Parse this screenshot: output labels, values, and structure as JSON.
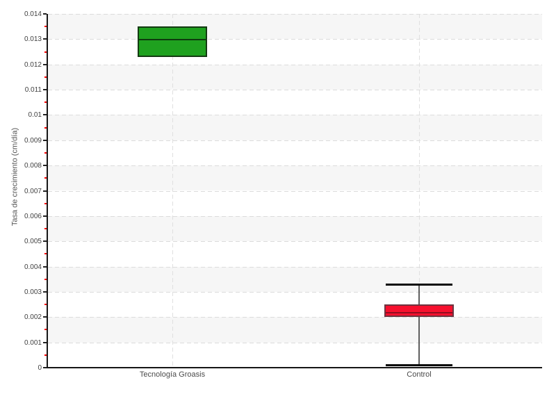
{
  "chart_data": {
    "type": "box",
    "title": "",
    "ylabel": "Tasa de crecimiento (cm/día)",
    "xlabel": "",
    "categories": [
      "Tecnología Groasis",
      "Control"
    ],
    "boxes": [
      {
        "category": "Tecnología Groasis",
        "q1": 0.0123,
        "median": 0.013,
        "q3": 0.0135,
        "whisker_low": null,
        "whisker_high": null,
        "fill": "#1fa11f",
        "border": "#143a12",
        "median_color": "#0e3b0e"
      },
      {
        "category": "Control",
        "q1": 0.002,
        "median": 0.0022,
        "q3": 0.0025,
        "whisker_low": 0.0001,
        "whisker_high": 0.0033,
        "fill": "#f7102e",
        "border": "#6e3440",
        "median_color": "#8f0d20"
      }
    ],
    "ylim": [
      0,
      0.014
    ],
    "ytick_step": 0.001,
    "minor_tick_step": 0.0005,
    "ytick_labels": [
      "0",
      "0.001",
      "0.002",
      "0.003",
      "0.004",
      "0.005",
      "0.006",
      "0.007",
      "0.008",
      "0.009",
      "0.01",
      "0.011",
      "0.012",
      "0.013",
      "0.014"
    ],
    "legend": null,
    "grid": {
      "horizontal": "dashed",
      "vertical": "dashed-at-categories",
      "alternating_bands": true
    }
  },
  "colors": {
    "background": "#ffffff",
    "band_gray": "#f6f6f6",
    "band_white": "#ffffff",
    "gridline": "#dcdcdc",
    "vgridline": "#e0e0e0",
    "axis": "#161616",
    "major_tick": "#222222",
    "minor_tick": "#ff0000",
    "tick_label": "#3f3f3f",
    "category_label": "#4a4a4a",
    "axis_title": "#555555",
    "whisker_line": "#5f5f5f",
    "whisker_cap": "#0a0a0a"
  }
}
